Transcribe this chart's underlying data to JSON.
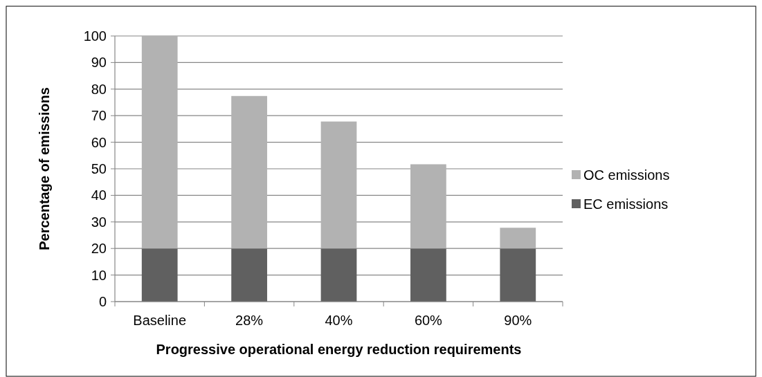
{
  "chart_data": {
    "type": "bar",
    "stacked": true,
    "xlabel": "Progressive operational energy reduction requirements",
    "ylabel": "Percentage of emissions",
    "categories": [
      "Baseline",
      "28%",
      "40%",
      "60%",
      "90%"
    ],
    "series": [
      {
        "name": "EC emissions",
        "color": "#606060",
        "values": [
          20,
          20,
          20,
          20,
          20
        ]
      },
      {
        "name": "OC emissions",
        "color": "#b2b2b2",
        "values": [
          80,
          57.4,
          47.8,
          31.7,
          7.8
        ]
      }
    ],
    "ylim": [
      0,
      100
    ],
    "yticks": [
      0,
      10,
      20,
      30,
      40,
      50,
      60,
      70,
      80,
      90,
      100
    ],
    "grid": "y",
    "legend": "right"
  }
}
